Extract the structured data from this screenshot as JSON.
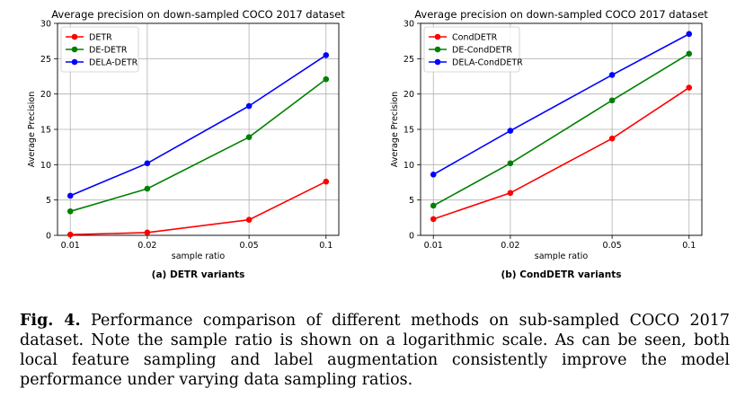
{
  "chart_data": [
    {
      "type": "line",
      "title": "Average precision on down-sampled COCO 2017 dataset",
      "xlabel": "sample ratio",
      "ylabel": "Average Precision",
      "x_scale": "log",
      "x": [
        0.01,
        0.02,
        0.05,
        0.1
      ],
      "x_tick_labels": [
        "0.01",
        "0.02",
        "0.05",
        "0.1"
      ],
      "ylim": [
        0,
        30
      ],
      "y_ticks": [
        0,
        5,
        10,
        15,
        20,
        25,
        30
      ],
      "grid": true,
      "legend": "top-left",
      "subcaption": "(a) DETR variants",
      "series": [
        {
          "name": "DETR",
          "color": "#ff0000",
          "values": [
            0.1,
            0.4,
            2.2,
            7.6
          ]
        },
        {
          "name": "DE-DETR",
          "color": "#008000",
          "values": [
            3.4,
            6.6,
            13.9,
            22.1
          ]
        },
        {
          "name": "DELA-DETR",
          "color": "#0000ff",
          "values": [
            5.6,
            10.2,
            18.3,
            25.5
          ]
        }
      ]
    },
    {
      "type": "line",
      "title": "Average precision on down-sampled COCO 2017 dataset",
      "xlabel": "sample ratio",
      "ylabel": "Average Precision",
      "x_scale": "log",
      "x": [
        0.01,
        0.02,
        0.05,
        0.1
      ],
      "x_tick_labels": [
        "0.01",
        "0.02",
        "0.05",
        "0.1"
      ],
      "ylim": [
        0,
        30
      ],
      "y_ticks": [
        0,
        5,
        10,
        15,
        20,
        25,
        30
      ],
      "grid": true,
      "legend": "top-left",
      "subcaption": "(b) CondDETR variants",
      "series": [
        {
          "name": "CondDETR",
          "color": "#ff0000",
          "values": [
            2.3,
            6.0,
            13.7,
            20.9
          ]
        },
        {
          "name": "DE-CondDETR",
          "color": "#008000",
          "values": [
            4.2,
            10.2,
            19.1,
            25.7
          ]
        },
        {
          "name": "DELA-CondDETR",
          "color": "#0000ff",
          "values": [
            8.6,
            14.8,
            22.7,
            28.5
          ]
        }
      ]
    }
  ],
  "caption": {
    "label": "Fig. 4.",
    "text": "Performance comparison of different methods on sub-sampled COCO 2017 dataset. Note the sample ratio is shown on a logarithmic scale. As can be seen, both local feature sampling and label augmentation consistently improve the model performance under varying data sampling ratios."
  }
}
